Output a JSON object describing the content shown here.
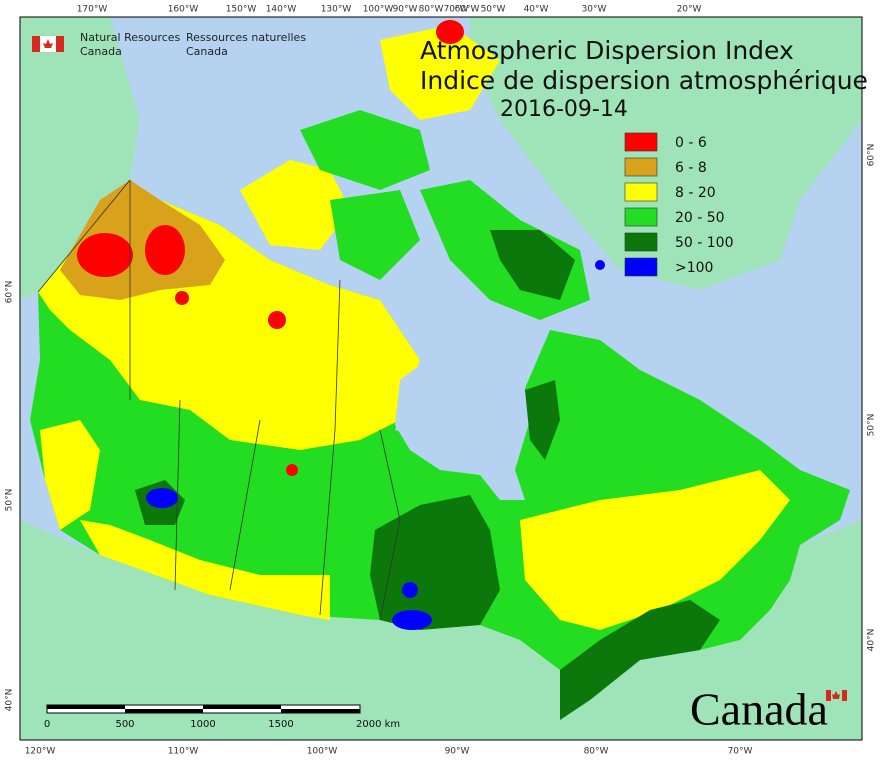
{
  "header": {
    "org_en_1": "Natural Resources",
    "org_en_2": "Canada",
    "org_fr_1": "Ressources naturelles",
    "org_fr_2": "Canada"
  },
  "title": {
    "en": "Atmospheric Dispersion Index",
    "fr": "Indice de dispersion atmosphérique",
    "date": "2016-09-14"
  },
  "legend": [
    {
      "label": "0 - 6",
      "color": "#ff0000"
    },
    {
      "label": "6 - 8",
      "color": "#d9a21b"
    },
    {
      "label": "8 - 20",
      "color": "#ffff00"
    },
    {
      "label": "20 - 50",
      "color": "#22dd22"
    },
    {
      "label": "50 - 100",
      "color": "#0c780c"
    },
    {
      "label": ">100",
      "color": "#0000ff"
    }
  ],
  "graticule": {
    "top": [
      "170°W",
      "160°W",
      "150°W",
      "140°W",
      "130°W",
      "100°W",
      "90°W",
      "80°W",
      "70°W",
      "60°W",
      "50°W",
      "40°W",
      "30°W",
      "20°W"
    ],
    "bottom": [
      "120°W",
      "110°W",
      "100°W",
      "90°W",
      "80°W",
      "70°W"
    ],
    "left": [
      "60°N",
      "50°N",
      "40°N"
    ],
    "right": [
      "60°N",
      "50°N",
      "40°N"
    ]
  },
  "scale_bar": {
    "labels": [
      "0",
      "500",
      "1000",
      "1500",
      "2000 km"
    ]
  },
  "wordmark": "Canada"
}
